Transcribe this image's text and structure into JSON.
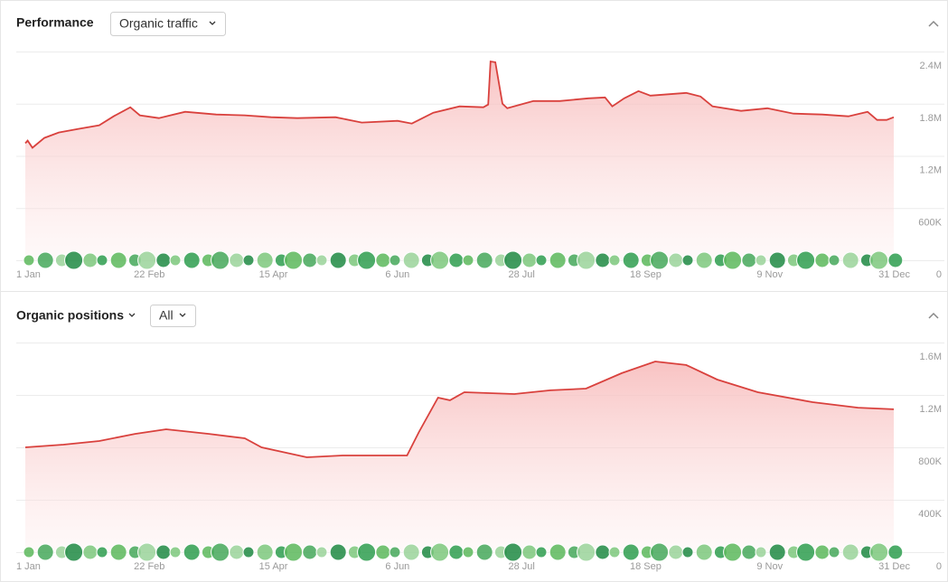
{
  "panels": [
    {
      "title": "Performance",
      "dropdowns": [
        "Organic traffic"
      ]
    },
    {
      "title": "Organic positions",
      "dropdowns": [
        "All"
      ]
    }
  ],
  "chart_data": [
    {
      "type": "area",
      "x": [
        0,
        1,
        3,
        8,
        14,
        22,
        31,
        37,
        44,
        48,
        56,
        67,
        80,
        92,
        103,
        114,
        130,
        141,
        156,
        162,
        171,
        182,
        192,
        194,
        195,
        197,
        200,
        202,
        213,
        224,
        236,
        243,
        246,
        251,
        257,
        262,
        277,
        283,
        288,
        300,
        311,
        322,
        334,
        345,
        353,
        357,
        361,
        364
      ],
      "series": [
        {
          "color": "#d9413d",
          "values": [
            1345000,
            1376000,
            1293000,
            1407000,
            1469000,
            1510000,
            1552000,
            1655000,
            1759000,
            1666000,
            1634000,
            1707000,
            1676000,
            1666000,
            1645000,
            1634000,
            1645000,
            1583000,
            1603000,
            1572000,
            1697000,
            1769000,
            1759000,
            1790000,
            2286000,
            2276000,
            1800000,
            1748000,
            1831000,
            1831000,
            1862000,
            1872000,
            1769000,
            1862000,
            1945000,
            1893000,
            1924000,
            1883000,
            1769000,
            1717000,
            1748000,
            1686000,
            1676000,
            1655000,
            1707000,
            1614000,
            1614000,
            1645000
          ]
        }
      ],
      "xlim": [
        0,
        364
      ],
      "xticks": [
        {
          "value": 0,
          "label": "1 Jan"
        },
        {
          "value": 52,
          "label": "22 Feb"
        },
        {
          "value": 104,
          "label": "15 Apr"
        },
        {
          "value": 156,
          "label": "6 Jun"
        },
        {
          "value": 208,
          "label": "28 Jul"
        },
        {
          "value": 260,
          "label": "18 Sep"
        },
        {
          "value": 312,
          "label": "9 Nov"
        },
        {
          "value": 364,
          "label": "31 Dec"
        }
      ],
      "ylim": [
        0,
        2400000
      ],
      "yticks": [
        0,
        {
          "value": 600000,
          "label": "600K"
        },
        {
          "value": 1200000,
          "label": "1.2M"
        },
        {
          "value": 1800000,
          "label": "1.8M"
        },
        {
          "value": 2400000,
          "label": "2.4M"
        }
      ],
      "grid": true
    },
    {
      "type": "area",
      "x": [
        0,
        16,
        31,
        46,
        59,
        77,
        92,
        99,
        118,
        133,
        160,
        165,
        173,
        178,
        184,
        205,
        220,
        235,
        250,
        264,
        277,
        290,
        307,
        330,
        349,
        364
      ],
      "series": [
        {
          "color": "#d9413d",
          "values": [
            800000,
            821000,
            848000,
            903000,
            938000,
            903000,
            869000,
            800000,
            724000,
            738000,
            738000,
            917000,
            1179000,
            1159000,
            1221000,
            1207000,
            1235000,
            1248000,
            1366000,
            1455000,
            1428000,
            1317000,
            1221000,
            1145000,
            1103000,
            1090000
          ]
        }
      ],
      "xlim": [
        0,
        364
      ],
      "xticks": [
        {
          "value": 0,
          "label": "1 Jan"
        },
        {
          "value": 52,
          "label": "22 Feb"
        },
        {
          "value": 104,
          "label": "15 Apr"
        },
        {
          "value": 156,
          "label": "6 Jun"
        },
        {
          "value": 208,
          "label": "28 Jul"
        },
        {
          "value": 260,
          "label": "18 Sep"
        },
        {
          "value": 312,
          "label": "9 Nov"
        },
        {
          "value": 364,
          "label": "31 Dec"
        }
      ],
      "ylim": [
        0,
        1600000
      ],
      "yticks": [
        0,
        {
          "value": 400000,
          "label": "400K"
        },
        {
          "value": 800000,
          "label": "800K"
        },
        {
          "value": 1200000,
          "label": "1.2M"
        },
        {
          "value": 1600000,
          "label": "1.6M"
        }
      ],
      "grid": true
    }
  ]
}
